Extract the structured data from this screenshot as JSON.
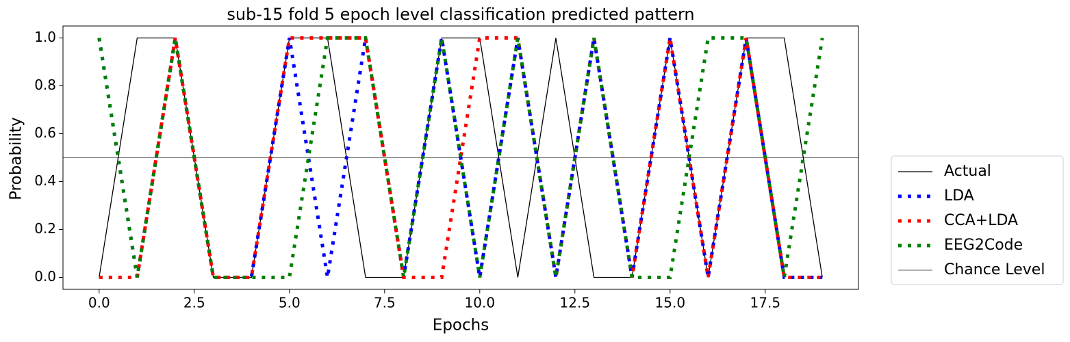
{
  "chart_data": {
    "type": "line",
    "title": "sub-15 fold 5 epoch level classification predicted pattern",
    "xlabel": "Epochs",
    "ylabel": "Probability",
    "x": [
      0,
      1,
      2,
      3,
      4,
      5,
      6,
      7,
      8,
      9,
      10,
      11,
      12,
      13,
      14,
      15,
      16,
      17,
      18,
      19
    ],
    "series": [
      {
        "name": "Actual",
        "color": "black",
        "style": "solid",
        "values": [
          0,
          1,
          1,
          0,
          0,
          1,
          1,
          0,
          0,
          1,
          1,
          0,
          1,
          0,
          0,
          1,
          0,
          1,
          1,
          0
        ]
      },
      {
        "name": "LDA",
        "color": "blue",
        "style": "dotted",
        "values": [
          1,
          0,
          1,
          0,
          0,
          1,
          0,
          1,
          0,
          1,
          0,
          1,
          0,
          1,
          0,
          1,
          0,
          1,
          0,
          0
        ]
      },
      {
        "name": "CCA+LDA",
        "color": "red",
        "style": "dotted",
        "values": [
          0,
          0,
          1,
          0,
          0,
          1,
          1,
          1,
          0,
          0,
          1,
          1,
          0,
          1,
          0,
          1,
          0,
          1,
          0,
          0
        ]
      },
      {
        "name": "EEG2Code",
        "color": "green",
        "style": "dotted",
        "values": [
          1,
          0,
          1,
          0,
          0,
          0,
          1,
          1,
          0,
          1,
          0,
          1,
          0,
          1,
          0,
          0,
          1,
          1,
          0,
          1
        ]
      }
    ],
    "hlines": [
      {
        "name": "Chance Level",
        "value": 0.5,
        "color": "gray"
      }
    ],
    "xlim": [
      -0.95,
      19.95
    ],
    "xticks": [
      {
        "value": 0,
        "label": "0.0"
      },
      2.5,
      {
        "value": 5,
        "label": "5.0"
      },
      7.5,
      {
        "value": 10,
        "label": "10.0"
      },
      12.5,
      {
        "value": 15,
        "label": "15.0"
      },
      17.5
    ],
    "ylim": [
      -0.05,
      1.05
    ],
    "yticks": [
      {
        "value": 0,
        "label": "0.0"
      },
      0.2,
      0.4,
      0.6,
      0.8,
      {
        "value": 1,
        "label": "1.0"
      }
    ],
    "legend": "outside right"
  }
}
